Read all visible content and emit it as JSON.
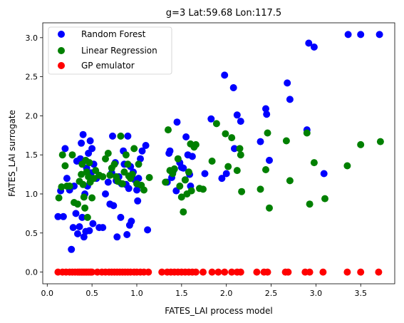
{
  "chart_data": {
    "type": "scatter",
    "title": "g=3 Lat:59.68 Lon:117.5",
    "xlabel": "FATES_LAI process model",
    "ylabel": "FATES_LAI surrogate",
    "xlim": [
      -0.05,
      3.88
    ],
    "ylim": [
      -0.15,
      3.19
    ],
    "xticks": [
      "0.0",
      "0.5",
      "1.0",
      "1.5",
      "2.0",
      "2.5",
      "3.0",
      "3.5"
    ],
    "xtick_values": [
      0.0,
      0.5,
      1.0,
      1.5,
      2.0,
      2.5,
      3.0,
      3.5
    ],
    "yticks": [
      "0.0",
      "0.5",
      "1.0",
      "1.5",
      "2.0",
      "2.5",
      "3.0"
    ],
    "ytick_values": [
      0.0,
      0.5,
      1.0,
      1.5,
      2.0,
      2.5,
      3.0
    ],
    "legend_position": "top-left",
    "series": [
      {
        "name": "Random Forest",
        "color": "#0000ff",
        "points": [
          [
            0.12,
            0.71
          ],
          [
            0.18,
            0.71
          ],
          [
            0.15,
            1.04
          ],
          [
            0.2,
            1.58
          ],
          [
            0.22,
            1.2
          ],
          [
            0.25,
            1.05
          ],
          [
            0.27,
            0.29
          ],
          [
            0.29,
            0.57
          ],
          [
            0.3,
            1.1
          ],
          [
            0.32,
            0.75
          ],
          [
            0.33,
            1.42
          ],
          [
            0.34,
            0.49
          ],
          [
            0.36,
            0.58
          ],
          [
            0.37,
            1.45
          ],
          [
            0.38,
            1.65
          ],
          [
            0.39,
            0.7
          ],
          [
            0.4,
            1.76
          ],
          [
            0.41,
            0.45
          ],
          [
            0.42,
            1.0
          ],
          [
            0.43,
            0.52
          ],
          [
            0.44,
            1.33
          ],
          [
            0.45,
            1.1
          ],
          [
            0.46,
            1.52
          ],
          [
            0.47,
            0.53
          ],
          [
            0.48,
            1.68
          ],
          [
            0.49,
            1.27
          ],
          [
            0.5,
            1.58
          ],
          [
            0.51,
            0.62
          ],
          [
            0.52,
            1.38
          ],
          [
            0.55,
            1.2
          ],
          [
            0.58,
            0.57
          ],
          [
            0.62,
            0.57
          ],
          [
            0.65,
            1.0
          ],
          [
            0.68,
            1.15
          ],
          [
            0.7,
            0.87
          ],
          [
            0.72,
            1.27
          ],
          [
            0.73,
            1.74
          ],
          [
            0.74,
            0.85
          ],
          [
            0.76,
            1.4
          ],
          [
            0.77,
            1.17
          ],
          [
            0.78,
            0.45
          ],
          [
            0.8,
            1.22
          ],
          [
            0.82,
            0.7
          ],
          [
            0.83,
            1.13
          ],
          [
            0.85,
            1.55
          ],
          [
            0.86,
            1.38
          ],
          [
            0.88,
            1.12
          ],
          [
            0.89,
            0.48
          ],
          [
            0.9,
            1.74
          ],
          [
            0.91,
            1.07
          ],
          [
            0.92,
            0.6
          ],
          [
            0.93,
            1.35
          ],
          [
            0.94,
            0.65
          ],
          [
            0.96,
            1.28
          ],
          [
            0.98,
            1.18
          ],
          [
            1.0,
            1.05
          ],
          [
            1.01,
            0.91
          ],
          [
            1.02,
            1.2
          ],
          [
            1.04,
            1.45
          ],
          [
            1.06,
            1.55
          ],
          [
            1.1,
            1.62
          ],
          [
            1.12,
            0.54
          ],
          [
            1.34,
            1.15
          ],
          [
            1.36,
            1.52
          ],
          [
            1.37,
            1.55
          ],
          [
            1.39,
            1.21
          ],
          [
            1.41,
            1.3
          ],
          [
            1.44,
            1.04
          ],
          [
            1.45,
            1.92
          ],
          [
            1.48,
            1.4
          ],
          [
            1.5,
            1.34
          ],
          [
            1.52,
            1.33
          ],
          [
            1.54,
            1.18
          ],
          [
            1.55,
            1.73
          ],
          [
            1.57,
            1.5
          ],
          [
            1.59,
            1.25
          ],
          [
            1.6,
            1.1
          ],
          [
            1.62,
            1.48
          ],
          [
            1.76,
            1.26
          ],
          [
            1.83,
            1.96
          ],
          [
            1.95,
            1.2
          ],
          [
            1.98,
            2.52
          ],
          [
            2.0,
            1.26
          ],
          [
            2.08,
            2.36
          ],
          [
            2.09,
            1.58
          ],
          [
            2.12,
            2.01
          ],
          [
            2.16,
            1.93
          ],
          [
            2.38,
            1.67
          ],
          [
            2.44,
            2.09
          ],
          [
            2.45,
            2.02
          ],
          [
            2.48,
            1.43
          ],
          [
            2.68,
            2.42
          ],
          [
            2.71,
            2.21
          ],
          [
            2.9,
            1.82
          ],
          [
            2.92,
            2.93
          ],
          [
            2.98,
            2.88
          ],
          [
            3.09,
            1.26
          ],
          [
            3.36,
            3.04
          ],
          [
            3.5,
            3.04
          ],
          [
            3.71,
            3.04
          ]
        ]
      },
      {
        "name": "Linear Regression",
        "color": "#008000",
        "points": [
          [
            0.13,
            0.95
          ],
          [
            0.16,
            1.09
          ],
          [
            0.17,
            1.5
          ],
          [
            0.2,
            1.36
          ],
          [
            0.22,
            1.1
          ],
          [
            0.25,
            1.1
          ],
          [
            0.28,
            1.5
          ],
          [
            0.3,
            0.89
          ],
          [
            0.34,
            0.87
          ],
          [
            0.36,
            1.16
          ],
          [
            0.38,
            1.25
          ],
          [
            0.39,
            1.38
          ],
          [
            0.4,
            1.12
          ],
          [
            0.41,
            0.96
          ],
          [
            0.42,
            0.82
          ],
          [
            0.43,
            1.43
          ],
          [
            0.44,
            1.28
          ],
          [
            0.45,
            0.7
          ],
          [
            0.46,
            1.22
          ],
          [
            0.47,
            1.4
          ],
          [
            0.48,
            1.15
          ],
          [
            0.5,
            0.95
          ],
          [
            0.52,
            1.2
          ],
          [
            0.54,
            1.3
          ],
          [
            0.58,
            1.24
          ],
          [
            0.62,
            1.22
          ],
          [
            0.65,
            1.45
          ],
          [
            0.68,
            1.52
          ],
          [
            0.7,
            1.24
          ],
          [
            0.72,
            1.33
          ],
          [
            0.75,
            1.38
          ],
          [
            0.77,
            1.22
          ],
          [
            0.79,
            1.16
          ],
          [
            0.82,
            1.74
          ],
          [
            0.84,
            1.13
          ],
          [
            0.86,
            1.28
          ],
          [
            0.88,
            1.5
          ],
          [
            0.9,
            1.38
          ],
          [
            0.91,
            1.23
          ],
          [
            0.93,
            1.2
          ],
          [
            0.95,
            1.25
          ],
          [
            0.97,
            1.58
          ],
          [
            1.0,
            1.13
          ],
          [
            1.02,
            1.38
          ],
          [
            1.05,
            1.11
          ],
          [
            1.08,
            1.05
          ],
          [
            1.14,
            1.21
          ],
          [
            1.32,
            1.15
          ],
          [
            1.35,
            1.82
          ],
          [
            1.37,
            1.3
          ],
          [
            1.4,
            1.26
          ],
          [
            1.42,
            1.32
          ],
          [
            1.46,
            1.45
          ],
          [
            1.48,
            1.1
          ],
          [
            1.5,
            0.96
          ],
          [
            1.52,
            0.77
          ],
          [
            1.54,
            1.18
          ],
          [
            1.56,
            1.0
          ],
          [
            1.58,
            1.28
          ],
          [
            1.6,
            1.64
          ],
          [
            1.61,
            1.04
          ],
          [
            1.64,
            1.6
          ],
          [
            1.66,
            1.63
          ],
          [
            1.7,
            1.07
          ],
          [
            1.74,
            1.06
          ],
          [
            1.84,
            1.42
          ],
          [
            1.89,
            1.9
          ],
          [
            1.99,
            1.77
          ],
          [
            2.02,
            1.35
          ],
          [
            2.06,
            1.72
          ],
          [
            2.12,
            1.3
          ],
          [
            2.15,
            1.58
          ],
          [
            2.16,
            1.5
          ],
          [
            2.17,
            1.03
          ],
          [
            2.38,
            1.06
          ],
          [
            2.44,
            1.31
          ],
          [
            2.46,
            1.78
          ],
          [
            2.48,
            0.82
          ],
          [
            2.67,
            1.68
          ],
          [
            2.71,
            1.17
          ],
          [
            2.9,
            1.78
          ],
          [
            2.93,
            0.87
          ],
          [
            2.98,
            1.4
          ],
          [
            3.1,
            0.94
          ],
          [
            3.35,
            1.36
          ],
          [
            3.5,
            1.63
          ],
          [
            3.72,
            1.67
          ]
        ]
      },
      {
        "name": "GP emulator",
        "color": "#ff0000",
        "points": [
          [
            0.12,
            0
          ],
          [
            0.17,
            0
          ],
          [
            0.21,
            0
          ],
          [
            0.25,
            0
          ],
          [
            0.28,
            0
          ],
          [
            0.31,
            0
          ],
          [
            0.34,
            0
          ],
          [
            0.36,
            0
          ],
          [
            0.38,
            0
          ],
          [
            0.4,
            0
          ],
          [
            0.42,
            0
          ],
          [
            0.44,
            0
          ],
          [
            0.46,
            0
          ],
          [
            0.48,
            0
          ],
          [
            0.5,
            0
          ],
          [
            0.56,
            0
          ],
          [
            0.61,
            0
          ],
          [
            0.65,
            0
          ],
          [
            0.69,
            0
          ],
          [
            0.72,
            0
          ],
          [
            0.75,
            0
          ],
          [
            0.78,
            0
          ],
          [
            0.81,
            0
          ],
          [
            0.84,
            0
          ],
          [
            0.87,
            0
          ],
          [
            0.9,
            0
          ],
          [
            0.93,
            0
          ],
          [
            0.97,
            0
          ],
          [
            1.0,
            0
          ],
          [
            1.04,
            0
          ],
          [
            1.08,
            0
          ],
          [
            1.13,
            0
          ],
          [
            1.28,
            0
          ],
          [
            1.34,
            0
          ],
          [
            1.38,
            0
          ],
          [
            1.42,
            0
          ],
          [
            1.46,
            0
          ],
          [
            1.5,
            0
          ],
          [
            1.54,
            0
          ],
          [
            1.58,
            0
          ],
          [
            1.62,
            0
          ],
          [
            1.66,
            0
          ],
          [
            1.74,
            0
          ],
          [
            1.84,
            0
          ],
          [
            1.91,
            0
          ],
          [
            1.98,
            0
          ],
          [
            2.06,
            0
          ],
          [
            2.12,
            0
          ],
          [
            2.16,
            0
          ],
          [
            2.34,
            0
          ],
          [
            2.42,
            0
          ],
          [
            2.46,
            0
          ],
          [
            2.66,
            0
          ],
          [
            2.69,
            0
          ],
          [
            2.88,
            0
          ],
          [
            2.93,
            0
          ],
          [
            3.08,
            0
          ],
          [
            3.35,
            0
          ],
          [
            3.5,
            0
          ],
          [
            3.7,
            0
          ]
        ]
      }
    ]
  }
}
